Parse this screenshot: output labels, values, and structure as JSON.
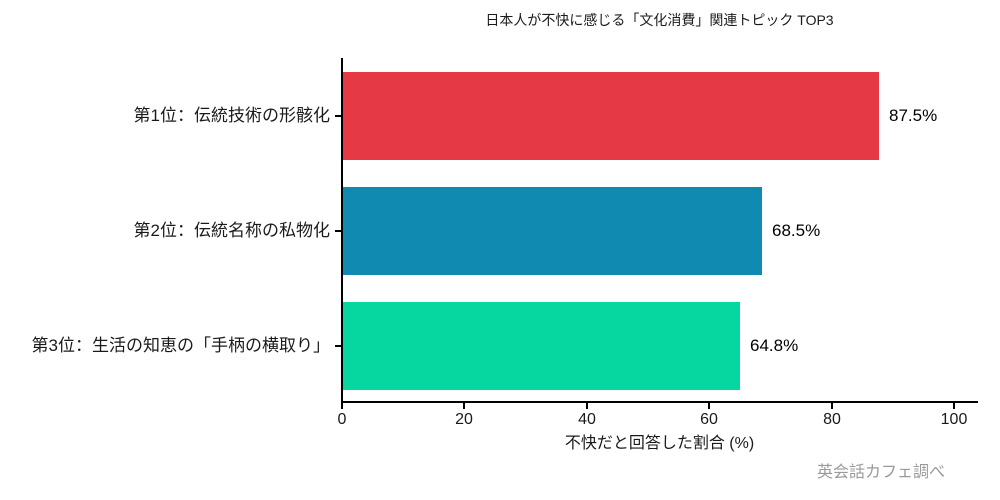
{
  "chart_data": {
    "type": "bar",
    "orientation": "horizontal",
    "title": "日本人が不快に感じる「文化消費」関連トピック TOP3",
    "categories": [
      "第1位：伝統技術の形骸化",
      "第2位：伝統名称の私物化",
      "第3位：生活の知恵の「手柄の横取り」"
    ],
    "values": [
      87.5,
      68.5,
      64.8
    ],
    "value_labels": [
      "87.5%",
      "68.5%",
      "64.8%"
    ],
    "bar_colors": [
      "#e63946",
      "#118ab2",
      "#06d6a0"
    ],
    "xlabel": "不快だと回答した割合 (%)",
    "xlim": [
      0,
      100
    ],
    "x_ticks": [
      "0",
      "20",
      "40",
      "60",
      "80",
      "100"
    ],
    "grid": false,
    "legend": null,
    "source_note": "英会話カフェ調べ",
    "axis_color": "#000000",
    "text_color": "#1a1a1a",
    "source_color": "#999999",
    "background": "#ffffff"
  }
}
